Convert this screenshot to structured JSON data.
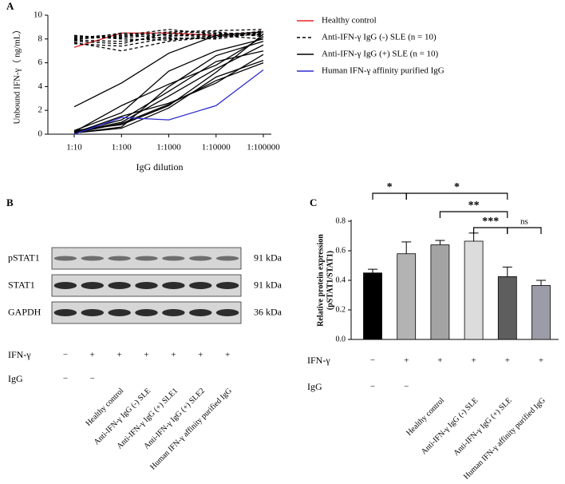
{
  "panel_labels": [
    "A",
    "B",
    "C"
  ],
  "chart_data": [
    {
      "type": "line",
      "xlabel": "IgG dilution",
      "ylabel": "Unbound IFN-γ（ ng/mL）",
      "categories": [
        "1:10",
        "1:100",
        "1:1000",
        "1:10000",
        "1:100000"
      ],
      "ylim": [
        0,
        10
      ],
      "yticks": [
        0,
        2,
        4,
        6,
        8,
        10
      ],
      "series": [
        {
          "name": "Healthy control",
          "color": "#e8242a",
          "dash": false,
          "values": [
            [
              7.3,
              8.5,
              8.5,
              8.3,
              8.6
            ]
          ]
        },
        {
          "name": "Anti-IFN-γ IgG (-) SLE (n = 10)",
          "color": "#000000",
          "dash": true,
          "values": [
            [
              8.2,
              8.1,
              8.4,
              8.3,
              8.5
            ],
            [
              8.0,
              8.3,
              8.8,
              8.4,
              8.6
            ],
            [
              7.9,
              7.8,
              8.2,
              8.5,
              8.3
            ],
            [
              7.7,
              7.0,
              7.8,
              8.2,
              8.4
            ],
            [
              8.1,
              8.4,
              8.0,
              8.1,
              8.7
            ],
            [
              7.8,
              7.6,
              8.5,
              8.6,
              8.2
            ],
            [
              8.3,
              8.0,
              7.9,
              8.3,
              8.0
            ],
            [
              7.6,
              7.4,
              8.1,
              8.0,
              8.5
            ],
            [
              8.0,
              8.2,
              8.6,
              8.7,
              8.8
            ],
            [
              7.9,
              8.5,
              8.3,
              8.2,
              8.4
            ]
          ]
        },
        {
          "name": "Anti-IFN-γ IgG (+) SLE (n = 10)",
          "color": "#000000",
          "dash": false,
          "values": [
            [
              2.3,
              4.3,
              6.8,
              8.3,
              8.6
            ],
            [
              0.2,
              2.4,
              4.2,
              5.8,
              8.2
            ],
            [
              0.3,
              1.8,
              5.3,
              7.0,
              8.0
            ],
            [
              0.1,
              0.6,
              4.0,
              6.6,
              7.8
            ],
            [
              0.2,
              1.0,
              3.2,
              5.5,
              7.5
            ],
            [
              0.1,
              1.5,
              2.6,
              4.3,
              6.7
            ],
            [
              0.3,
              0.8,
              2.4,
              5.2,
              8.4
            ],
            [
              0.1,
              0.5,
              2.2,
              4.8,
              6.2
            ],
            [
              0.2,
              1.2,
              3.6,
              6.1,
              7.0
            ],
            [
              0.1,
              0.9,
              2.5,
              4.5,
              6.0
            ]
          ]
        },
        {
          "name": "Human IFN-γ affinity purified IgG",
          "color": "#2b2bd0",
          "dash": false,
          "values": [
            [
              0.0,
              1.4,
              1.2,
              2.4,
              5.4
            ]
          ]
        }
      ]
    },
    {
      "type": "bar",
      "ylabel": [
        "Relative protein expression",
        "(pSTAT1/STAT1)"
      ],
      "categories": [
        null,
        null,
        "Healthy control",
        "Anti-IFN-γ IgG (-) SLE",
        "Anti-IFN-γ IgG (+) SLE",
        "Human IFN-γ affinity purified IgG"
      ],
      "values": [
        0.45,
        0.58,
        0.64,
        0.665,
        0.425,
        0.365
      ],
      "errors": [
        0.025,
        0.08,
        0.03,
        0.055,
        0.065,
        0.035
      ],
      "colors": [
        "#000000",
        "#b3b3b3",
        "#a3a3a3",
        "#dcdcdc",
        "#5e5e5e",
        "#9c9ca8"
      ],
      "ylim": [
        0,
        0.8
      ],
      "yticks": [
        {
          "value": 0,
          "label": "0.0"
        },
        0.2,
        0.4,
        0.6,
        0.8
      ],
      "significance": [
        {
          "label": "*",
          "from": 0,
          "to": 1
        },
        {
          "label": "*",
          "from": 1,
          "to": 4
        },
        {
          "label": "**",
          "from": 2,
          "to": 4
        },
        {
          "label": "***",
          "from": 3,
          "to": 4
        },
        {
          "label": "ns",
          "from": 4,
          "to": 5
        }
      ],
      "rows": [
        {
          "label": "IFN-γ",
          "signs": [
            "−",
            "+",
            "+",
            "+",
            "+",
            "+"
          ]
        },
        {
          "label": "IgG",
          "signs": [
            "−",
            "−"
          ]
        }
      ]
    }
  ],
  "blot": {
    "bands": [
      {
        "label": "pSTAT1",
        "size": "91 kDa"
      },
      {
        "label": "STAT1",
        "size": "91 kDa"
      },
      {
        "label": "GAPDH",
        "size": "36 kDa"
      }
    ],
    "lanes": [
      null,
      null,
      "Healthy control",
      "Anti-IFN-γ IgG (-) SLE",
      "Anti-IFN-γ IgG (+) SLE1",
      "Anti-IFN-γ IgG (+) SLE2",
      "Human IFN-γ affinity purified IgG"
    ],
    "rows": [
      {
        "label": "IFN-γ",
        "signs": [
          "−",
          "+",
          "+",
          "+",
          "+",
          "+",
          "+"
        ]
      },
      {
        "label": "IgG",
        "signs": [
          "−",
          "−"
        ]
      }
    ]
  }
}
